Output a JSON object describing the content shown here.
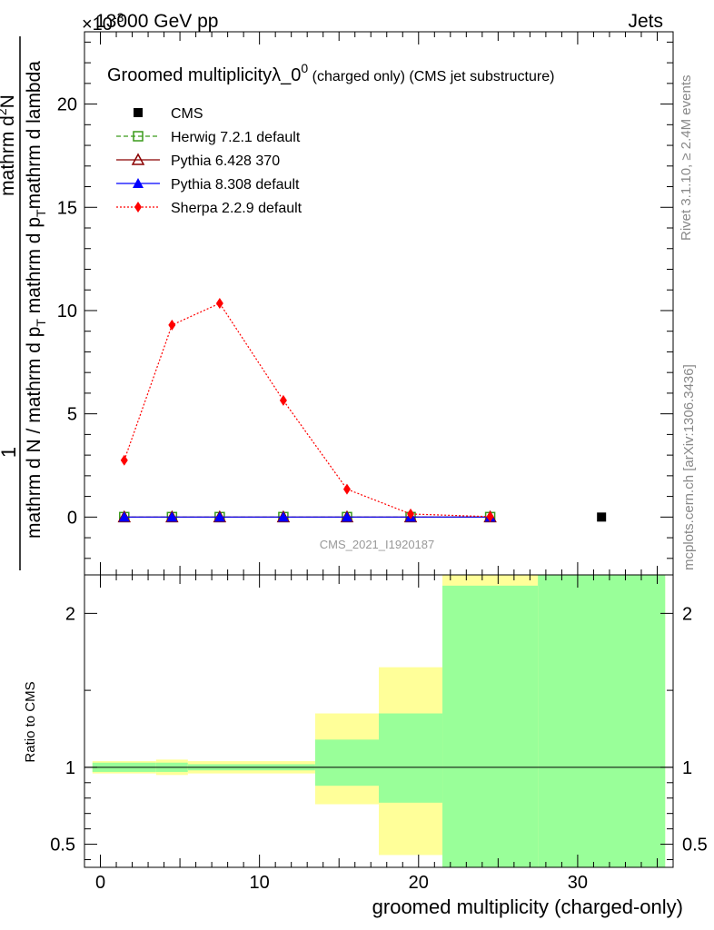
{
  "header": {
    "left": "13000 GeV pp",
    "right": "Jets",
    "exponent": "×10^-3"
  },
  "side_labels": {
    "rivet": "Rivet 3.1.10, ≥ 2.4M events",
    "mcplots": "mcplots.cern.ch [arXiv:1306.3436]"
  },
  "watermark": "CMS_2021_I1920187",
  "chart_data": [
    {
      "type": "line",
      "title": "Groomed multiplicity λ_0^0 (charged only) (CMS jet substructure)",
      "title_main": "Groomed multiplicityλ_0",
      "title_sup": "0",
      "title_rest": "(charged only) (CMS jet substructure)",
      "ylabel_top": "1",
      "ylabel_num": "mathrm d²N",
      "ylabel_den_line1": "mathrm d N / mathrm d p_T mathrm d p_T mathrm d lambda",
      "ylabel_den_line2": "mathrm d p_T mathrm d lambda",
      "ylim": [
        -2.8,
        23.5
      ],
      "xlim": [
        -1,
        36
      ],
      "y_scale_note": "×10^-3",
      "y_ticks": [
        0,
        5,
        10,
        15,
        20
      ],
      "y_tick_labels": [
        "0",
        "5",
        "10",
        "15",
        "20"
      ],
      "legend_position": "top-left",
      "series": [
        {
          "name": "CMS",
          "color": "#000000",
          "marker": "square-filled",
          "line": "none",
          "x": [
            31.5
          ],
          "y": [
            0.0
          ]
        },
        {
          "name": "Herwig 7.2.1 default",
          "color": "#3a9a1a",
          "marker": "square-open",
          "line": "dashed",
          "x": [
            1.5,
            4.5,
            7.5,
            11.5,
            15.5,
            19.5,
            24.5
          ],
          "y": [
            0,
            0,
            0,
            0,
            0,
            0,
            0
          ]
        },
        {
          "name": "Pythia 6.428 370",
          "color": "#8b0000",
          "marker": "triangle-open",
          "line": "solid",
          "x": [
            1.5,
            4.5,
            7.5,
            11.5,
            15.5,
            19.5,
            24.5
          ],
          "y": [
            0,
            0,
            0,
            0,
            0,
            0,
            0
          ]
        },
        {
          "name": "Pythia 8.308 default",
          "color": "#0000ff",
          "marker": "triangle-filled",
          "line": "solid",
          "x": [
            1.5,
            4.5,
            7.5,
            11.5,
            15.5,
            19.5,
            24.5
          ],
          "y": [
            0,
            0,
            0,
            0,
            0,
            0,
            0
          ]
        },
        {
          "name": "Sherpa 2.2.9 default",
          "color": "#ff0000",
          "marker": "diamond-filled",
          "line": "dotted",
          "x": [
            1.5,
            4.5,
            7.5,
            11.5,
            15.5,
            19.5,
            24.5
          ],
          "y": [
            2.75,
            9.3,
            10.35,
            5.65,
            1.35,
            0.15,
            0.02
          ]
        }
      ]
    },
    {
      "type": "area",
      "ylabel": "Ratio to CMS",
      "xlabel": "groomed multiplicity (charged-only)",
      "xlim": [
        -1,
        36
      ],
      "ylim": [
        0.35,
        2.25
      ],
      "x_ticks": [
        0,
        10,
        20,
        30
      ],
      "x_tick_labels": [
        "0",
        "10",
        "20",
        "30"
      ],
      "y_ticks": [
        0.5,
        1,
        2
      ],
      "y_tick_labels": [
        "0.5",
        "1",
        "2"
      ],
      "reference_line": 1,
      "bins": [
        {
          "x_low": -0.5,
          "x_high": 3.5,
          "yellow": [
            0.96,
            1.04
          ],
          "green": [
            0.97,
            1.03
          ]
        },
        {
          "x_low": 3.5,
          "x_high": 5.5,
          "yellow": [
            0.95,
            1.05
          ],
          "green": [
            0.97,
            1.03
          ]
        },
        {
          "x_low": 5.5,
          "x_high": 13.5,
          "yellow": [
            0.96,
            1.04
          ],
          "green": [
            0.98,
            1.02
          ]
        },
        {
          "x_low": 13.5,
          "x_high": 17.5,
          "yellow": [
            0.76,
            1.35
          ],
          "green": [
            0.88,
            1.18
          ]
        },
        {
          "x_low": 17.5,
          "x_high": 21.5,
          "yellow": [
            0.43,
            1.65
          ],
          "green": [
            0.77,
            1.35
          ]
        },
        {
          "x_low": 21.5,
          "x_high": 27.5,
          "yellow": [
            0.35,
            2.25
          ],
          "green": [
            0.35,
            2.18
          ]
        },
        {
          "x_low": 27.5,
          "x_high": 35.5,
          "yellow": [
            0.35,
            2.25
          ],
          "green": [
            0.35,
            2.25
          ]
        }
      ]
    }
  ],
  "colors": {
    "yellow_band": "#ffff99",
    "green_band": "#99ff99"
  }
}
